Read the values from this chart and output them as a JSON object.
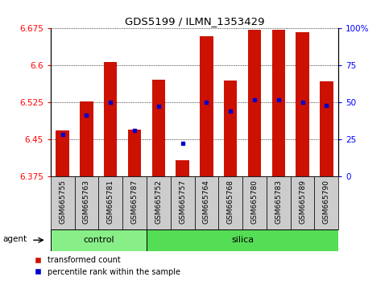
{
  "title": "GDS5199 / ILMN_1353429",
  "samples": [
    "GSM665755",
    "GSM665763",
    "GSM665781",
    "GSM665787",
    "GSM665752",
    "GSM665757",
    "GSM665764",
    "GSM665768",
    "GSM665780",
    "GSM665783",
    "GSM665789",
    "GSM665790"
  ],
  "groups": [
    "control",
    "control",
    "control",
    "control",
    "silica",
    "silica",
    "silica",
    "silica",
    "silica",
    "silica",
    "silica",
    "silica"
  ],
  "transformed_count": [
    6.468,
    6.527,
    6.607,
    6.47,
    6.572,
    6.408,
    6.66,
    6.57,
    6.672,
    6.672,
    6.668,
    6.568
  ],
  "percentile_rank": [
    6.46,
    6.5,
    6.525,
    6.468,
    6.517,
    6.443,
    6.525,
    6.508,
    6.53,
    6.53,
    6.525,
    6.52
  ],
  "ylim_left": [
    6.375,
    6.675
  ],
  "ylim_right": [
    0,
    100
  ],
  "y_ticks_left": [
    6.375,
    6.45,
    6.525,
    6.6,
    6.675
  ],
  "y_ticks_right": [
    0,
    25,
    50,
    75,
    100
  ],
  "bar_color": "#cc1100",
  "dot_color": "#0000cc",
  "control_color": "#88ee88",
  "silica_color": "#55dd55",
  "tick_bg_color": "#cccccc",
  "bar_width": 0.55,
  "n_control": 4,
  "n_silica": 8
}
